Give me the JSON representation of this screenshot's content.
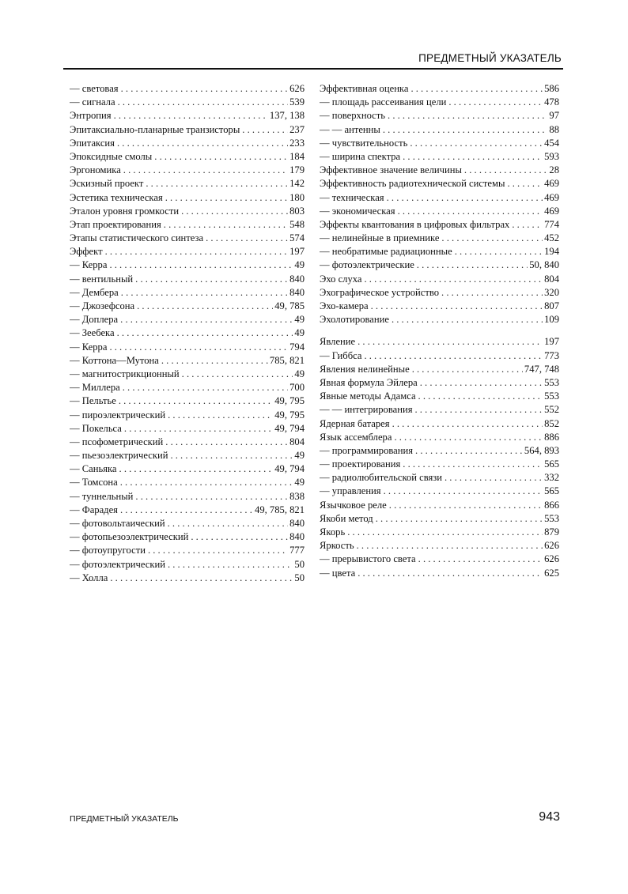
{
  "header": {
    "title": "ПРЕДМЕТНЫЙ УКАЗАТЕЛЬ"
  },
  "left_column": [
    {
      "term": "— световая",
      "pages": "626"
    },
    {
      "term": "— сигнала",
      "pages": "539"
    },
    {
      "term": "Энтропия",
      "pages": "137, 138"
    },
    {
      "term": "Эпитаксиально-планарные транзисторы",
      "pages": "237"
    },
    {
      "term": "Эпитаксия",
      "pages": "233"
    },
    {
      "term": "Эпоксидные смолы",
      "pages": "184"
    },
    {
      "term": "Эргономика",
      "pages": "179"
    },
    {
      "term": "Эскизный проект",
      "pages": "142"
    },
    {
      "term": "Эстетика техническая",
      "pages": "180"
    },
    {
      "term": "Эталон уровня громкости",
      "pages": "803"
    },
    {
      "term": "Этап проектирования",
      "pages": "548"
    },
    {
      "term": "Этапы статистического синтеза",
      "pages": "574"
    },
    {
      "term": "Эффект",
      "pages": "197"
    },
    {
      "term": "— Керра",
      "pages": "49"
    },
    {
      "term": "— вентильный",
      "pages": "840"
    },
    {
      "term": "— Дембера",
      "pages": "840"
    },
    {
      "term": "— Джозефсона",
      "pages": "49, 785"
    },
    {
      "term": "— Доплера",
      "pages": "49"
    },
    {
      "term": "— Зеебека",
      "pages": "49"
    },
    {
      "term": "— Керра",
      "pages": "794"
    },
    {
      "term": "— Коттона—Мутона",
      "pages": "785, 821"
    },
    {
      "term": "— магнитострикционный",
      "pages": "49"
    },
    {
      "term": "— Миллера",
      "pages": "700"
    },
    {
      "term": "— Пельтье",
      "pages": "49, 795"
    },
    {
      "term": "— пироэлектрический",
      "pages": "49, 795"
    },
    {
      "term": "— Покельса",
      "pages": "49, 794"
    },
    {
      "term": "— псофометрический",
      "pages": "804"
    },
    {
      "term": "— пьезоэлектрический",
      "pages": "49"
    },
    {
      "term": "— Саньяка",
      "pages": "49, 794"
    },
    {
      "term": "— Томсона",
      "pages": "49"
    },
    {
      "term": "— туннельный",
      "pages": "838"
    },
    {
      "term": "— Фарадея",
      "pages": "49, 785, 821"
    },
    {
      "term": "— фотовольтаический",
      "pages": "840"
    },
    {
      "term": "— фотопьезоэлектрический",
      "pages": "840"
    },
    {
      "term": "— фотоупругости",
      "pages": "777"
    },
    {
      "term": "— фотоэлектрический",
      "pages": "50"
    },
    {
      "term": "— Холла",
      "pages": "50"
    }
  ],
  "right_column_1": [
    {
      "term": "Эффективная оценка",
      "pages": "586"
    },
    {
      "term": "— площадь рассеивания цели",
      "pages": "478"
    },
    {
      "term": "— поверхность",
      "pages": "97"
    },
    {
      "term": "— — антенны",
      "pages": "88"
    },
    {
      "term": "— чувствительность",
      "pages": "454"
    },
    {
      "term": "— ширина спектра",
      "pages": "593"
    },
    {
      "term": "Эффективное значение величины",
      "pages": "28"
    },
    {
      "term": "Эффективность радиотехнической системы",
      "pages": "469"
    },
    {
      "term": "— техническая",
      "pages": "469"
    },
    {
      "term": "— экономическая",
      "pages": "469"
    },
    {
      "term": "Эффекты квантования в цифровых фильтрах",
      "pages": "774"
    },
    {
      "term": "— нелинейные в приемнике",
      "pages": "452"
    },
    {
      "term": "— необратимые радиационные",
      "pages": "194"
    },
    {
      "term": "— фотоэлектрические",
      "pages": "50, 840"
    },
    {
      "term": "Эхо слуха",
      "pages": "804"
    },
    {
      "term": "Эхографическое устройство",
      "pages": "320"
    },
    {
      "term": "Эхо-камера",
      "pages": "807"
    },
    {
      "term": "Эхолотирование",
      "pages": "109"
    }
  ],
  "right_column_2": [
    {
      "term": "Явление",
      "pages": "197"
    },
    {
      "term": "— Гиббса",
      "pages": "773"
    },
    {
      "term": "Явления нелинейные",
      "pages": "747, 748"
    },
    {
      "term": "Явная формула Эйлера",
      "pages": "553"
    },
    {
      "term": "Явные методы Адамса",
      "pages": "553"
    },
    {
      "term": "— — интегрирования",
      "pages": "552"
    },
    {
      "term": "Ядерная батарея",
      "pages": "852"
    },
    {
      "term": "Язык ассемблера",
      "pages": "886"
    },
    {
      "term": "— программирования",
      "pages": "564, 893"
    },
    {
      "term": "— проектирования",
      "pages": "565"
    },
    {
      "term": "— радиолюбительской связи",
      "pages": "332"
    },
    {
      "term": "— управления",
      "pages": "565"
    },
    {
      "term": "Язычковое реле",
      "pages": "866"
    },
    {
      "term": "Якоби метод",
      "pages": "553"
    },
    {
      "term": "Якорь",
      "pages": "879"
    },
    {
      "term": "Яркость",
      "pages": "626"
    },
    {
      "term": "— прерывистого света",
      "pages": "626"
    },
    {
      "term": "— цвета",
      "pages": "625"
    }
  ],
  "footer": {
    "title": "ПРЕДМЕТНЫЙ УКАЗАТЕЛЬ",
    "page_number": "943"
  }
}
